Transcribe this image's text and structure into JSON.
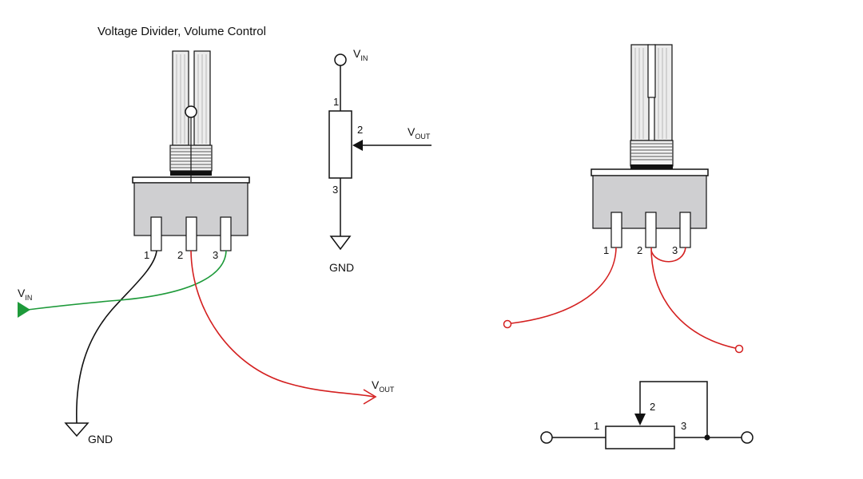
{
  "title": "Voltage Divider, Volume Control",
  "signals": {
    "vin": {
      "main": "V",
      "sub": "IN"
    },
    "vout": {
      "main": "V",
      "sub": "OUT"
    },
    "gnd": "GND"
  },
  "pins": {
    "p1": "1",
    "p2": "2",
    "p3": "3"
  },
  "colors": {
    "wire_gnd": "#111111",
    "wire_vout": "#d42020",
    "wire_vin": "#1e9a3a",
    "pot_body": "#cfcfd1",
    "shaft": "#ececec"
  }
}
